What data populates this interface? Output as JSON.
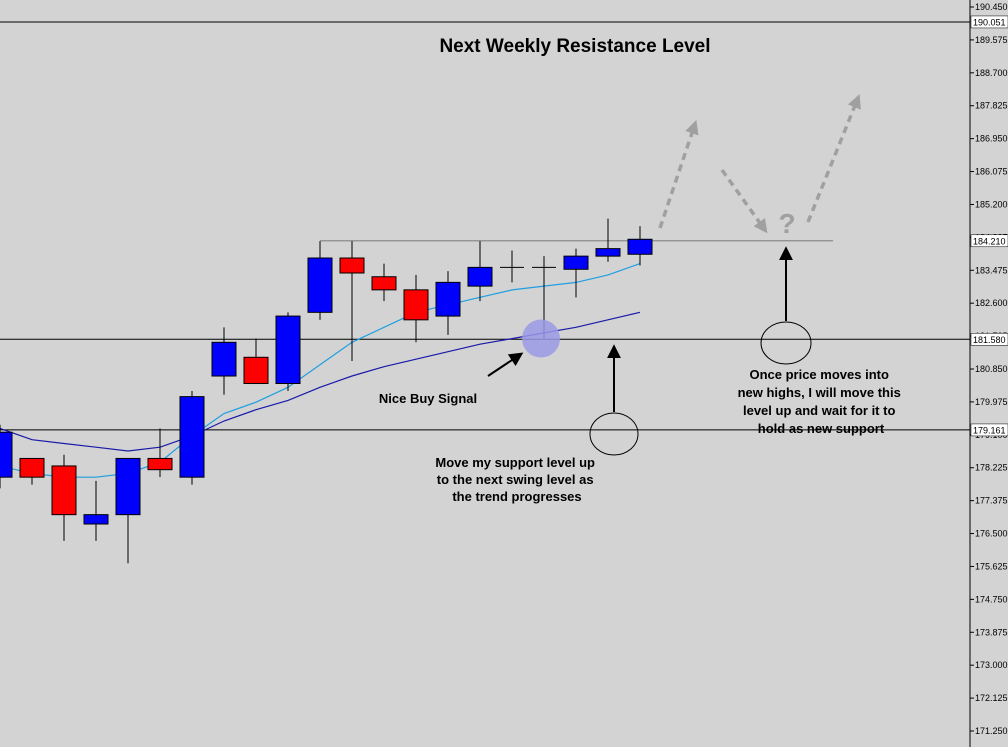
{
  "chart_data": {
    "type": "candlestick",
    "title": "Next Weekly Resistance Level",
    "colors": {
      "background": "#d3d3d3",
      "bull_body": "#0000ff",
      "bear_body": "#ff0000",
      "wick": "#000000",
      "fast_ma": "#1e9fe0",
      "slow_ma": "#1a1aaa",
      "projection": "#a0a0a0",
      "signal_marker": "#9a9ae6"
    },
    "y_axis": {
      "ylim": [
        171.125,
        190.45
      ],
      "tick_labels": [
        "190.450",
        "189.575",
        "188.700",
        "187.825",
        "186.950",
        "186.075",
        "185.200",
        "184.325",
        "183.475",
        "182.600",
        "181.725",
        "180.850",
        "179.975",
        "179.100",
        "178.225",
        "177.375",
        "176.500",
        "175.625",
        "174.750",
        "173.875",
        "173.000",
        "172.125",
        "171.250"
      ],
      "highlighted_labels": [
        "190.051",
        "184.210",
        "181.580",
        "179.161"
      ]
    },
    "horizontal_levels": [
      {
        "name": "weekly-resistance-top",
        "price": 190.051,
        "label": "190.051"
      },
      {
        "name": "resistance",
        "price": 184.21,
        "label": "184.210",
        "style": "grey"
      },
      {
        "name": "new-support",
        "price": 181.58,
        "label": "181.580"
      },
      {
        "name": "old-support",
        "price": 179.161,
        "label": "179.161"
      }
    ],
    "candles": [
      {
        "o": 177.9,
        "h": 179.3,
        "l": 177.6,
        "c": 179.1
      },
      {
        "o": 178.4,
        "h": 178.4,
        "l": 177.7,
        "c": 177.9
      },
      {
        "o": 178.2,
        "h": 178.5,
        "l": 176.2,
        "c": 176.9
      },
      {
        "o": 176.65,
        "h": 177.8,
        "l": 176.2,
        "c": 176.9
      },
      {
        "o": 176.9,
        "h": 178.4,
        "l": 175.6,
        "c": 178.4
      },
      {
        "o": 178.4,
        "h": 179.2,
        "l": 177.9,
        "c": 178.1
      },
      {
        "o": 177.9,
        "h": 180.2,
        "l": 177.7,
        "c": 180.05
      },
      {
        "o": 180.6,
        "h": 181.9,
        "l": 180.1,
        "c": 181.5
      },
      {
        "o": 181.1,
        "h": 181.6,
        "l": 180.4,
        "c": 180.4
      },
      {
        "o": 180.4,
        "h": 182.3,
        "l": 180.2,
        "c": 182.2
      },
      {
        "o": 182.3,
        "h": 184.2,
        "l": 182.1,
        "c": 183.75
      },
      {
        "o": 183.75,
        "h": 184.2,
        "l": 181.0,
        "c": 183.35
      },
      {
        "o": 183.25,
        "h": 183.6,
        "l": 182.6,
        "c": 182.9
      },
      {
        "o": 182.9,
        "h": 183.3,
        "l": 181.5,
        "c": 182.1
      },
      {
        "o": 182.2,
        "h": 183.4,
        "l": 181.7,
        "c": 183.1
      },
      {
        "o": 183.0,
        "h": 184.2,
        "l": 182.6,
        "c": 183.5
      },
      {
        "o": 183.5,
        "h": 183.95,
        "l": 183.1,
        "c": 183.5
      },
      {
        "o": 183.5,
        "h": 183.8,
        "l": 181.6,
        "c": 183.5
      },
      {
        "o": 183.45,
        "h": 184.0,
        "l": 182.7,
        "c": 183.8
      },
      {
        "o": 183.8,
        "h": 184.8,
        "l": 183.65,
        "c": 184.0
      },
      {
        "o": 183.85,
        "h": 184.6,
        "l": 183.55,
        "c": 184.25
      }
    ],
    "fast_ma": [
      178.2,
      178.0,
      177.9,
      177.9,
      178.0,
      178.3,
      179.0,
      179.6,
      179.9,
      180.3,
      180.9,
      181.5,
      181.9,
      182.3,
      182.5,
      182.7,
      182.9,
      183.0,
      183.1,
      183.3,
      183.6
    ],
    "slow_ma": [
      179.2,
      178.9,
      178.8,
      178.7,
      178.6,
      178.7,
      179.0,
      179.4,
      179.7,
      179.95,
      180.3,
      180.6,
      180.85,
      181.05,
      181.25,
      181.45,
      181.6,
      181.75,
      181.9,
      182.1,
      182.3
    ],
    "annotations": [
      {
        "text": "Nice Buy Signal",
        "lines": [
          "Nice Buy Signal"
        ]
      },
      {
        "text": "Move my support level up to the next swing level as the trend progresses",
        "lines": [
          "Move my support level up",
          "to the next swing level as",
          "the trend progresses"
        ]
      },
      {
        "text": "Once price moves into new highs, I will move this level up and wait for it to hold as new support",
        "lines": [
          "Once price moves into",
          "new highs, I will move this",
          "level up and wait for it to",
          "hold as new support"
        ]
      },
      {
        "text": "?",
        "lines": [
          "?"
        ]
      }
    ]
  }
}
